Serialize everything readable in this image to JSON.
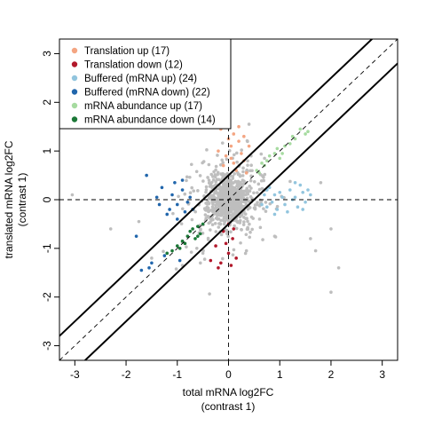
{
  "chart_data": {
    "type": "scatter",
    "xlabel": [
      "total mRNA log2FC",
      "(contrast 1)"
    ],
    "ylabel": [
      "translated mRNA log2FC",
      "(contrast 1)"
    ],
    "xlim": [
      -3.3,
      3.3
    ],
    "ylim": [
      -3.3,
      3.3
    ],
    "xticks": [
      -3,
      -2,
      -1,
      0,
      1,
      2,
      3
    ],
    "yticks": [
      -3,
      -2,
      -1,
      0,
      1,
      2,
      3
    ],
    "grid": false,
    "legend_position": "top-left",
    "reference_lines": {
      "identity": "dashed",
      "x_zero": "dashed",
      "y_zero": "dashed",
      "offset_lines_solid": [
        0.5,
        -0.5
      ]
    },
    "series": [
      {
        "name": "Translation up (17)",
        "color": "#f4a582",
        "points": [
          [
            -0.15,
            1.45
          ],
          [
            0.1,
            1.35
          ],
          [
            0.2,
            1.2
          ],
          [
            0.05,
            1.1
          ],
          [
            0.25,
            0.95
          ],
          [
            -0.05,
            0.9
          ],
          [
            0.3,
            0.8
          ],
          [
            0.1,
            0.75
          ],
          [
            -0.2,
            1.0
          ],
          [
            0.15,
            0.6
          ],
          [
            0.4,
            1.1
          ],
          [
            0.0,
            1.25
          ],
          [
            -0.1,
            0.7
          ],
          [
            0.35,
            0.55
          ],
          [
            0.2,
            1.5
          ],
          [
            0.05,
            0.85
          ],
          [
            0.3,
            1.3
          ]
        ]
      },
      {
        "name": "Translation down (12)",
        "color": "#b2182b",
        "points": [
          [
            -0.35,
            -1.25
          ],
          [
            -0.05,
            -0.9
          ],
          [
            0.0,
            -1.1
          ],
          [
            0.1,
            -0.6
          ],
          [
            -0.2,
            -1.4
          ],
          [
            0.05,
            -1.35
          ],
          [
            -0.1,
            -0.65
          ],
          [
            -0.25,
            -0.95
          ],
          [
            0.15,
            -1.2
          ],
          [
            0.0,
            -0.5
          ],
          [
            -0.15,
            -1.3
          ],
          [
            0.08,
            -0.8
          ]
        ]
      },
      {
        "name": "Buffered (mRNA up) (24)",
        "color": "#92c5de",
        "points": [
          [
            0.9,
            0.1
          ],
          [
            1.1,
            -0.1
          ],
          [
            1.3,
            0.05
          ],
          [
            0.75,
            -0.15
          ],
          [
            1.45,
            0.15
          ],
          [
            1.5,
            -0.05
          ],
          [
            1.2,
            0.2
          ],
          [
            0.95,
            -0.2
          ],
          [
            0.8,
            0.25
          ],
          [
            1.05,
            0.05
          ],
          [
            1.6,
            0.1
          ],
          [
            1.35,
            -0.15
          ],
          [
            0.7,
            0.1
          ],
          [
            1.15,
            -0.25
          ],
          [
            1.4,
            0.3
          ],
          [
            0.85,
            -0.05
          ],
          [
            1.25,
            0.0
          ],
          [
            0.65,
            -0.1
          ],
          [
            1.55,
            0.2
          ],
          [
            1.0,
            0.15
          ],
          [
            0.9,
            -0.3
          ],
          [
            1.3,
            0.35
          ],
          [
            1.45,
            -0.2
          ],
          [
            0.75,
            0.2
          ]
        ]
      },
      {
        "name": "Buffered (mRNA down) (22)",
        "color": "#2166ac",
        "points": [
          [
            -1.3,
            0.25
          ],
          [
            -1.0,
            -0.1
          ],
          [
            -0.85,
            -0.25
          ],
          [
            -0.9,
            0.2
          ],
          [
            -1.2,
            -0.3
          ],
          [
            -1.5,
            -1.3
          ],
          [
            -1.25,
            -1.15
          ],
          [
            -0.95,
            -1.25
          ],
          [
            -1.8,
            -0.75
          ],
          [
            -0.75,
            0.05
          ],
          [
            -1.1,
            0.1
          ],
          [
            -1.4,
            0.05
          ],
          [
            -1.6,
            0.5
          ],
          [
            -1.05,
            0.35
          ],
          [
            -0.8,
            -0.05
          ],
          [
            -1.15,
            -0.2
          ],
          [
            -0.7,
            -0.2
          ],
          [
            -1.35,
            -0.1
          ],
          [
            -1.55,
            -1.4
          ],
          [
            -1.7,
            -1.45
          ],
          [
            -1.0,
            -0.4
          ],
          [
            -0.9,
            0.4
          ]
        ]
      },
      {
        "name": "mRNA abundance up (17)",
        "color": "#a6dba0",
        "points": [
          [
            1.4,
            1.45
          ],
          [
            1.5,
            1.35
          ],
          [
            1.3,
            1.25
          ],
          [
            1.55,
            1.4
          ],
          [
            0.9,
            0.95
          ],
          [
            1.0,
            0.85
          ],
          [
            0.7,
            0.7
          ],
          [
            0.8,
            0.9
          ],
          [
            1.1,
            1.1
          ],
          [
            0.6,
            0.55
          ],
          [
            1.2,
            1.15
          ],
          [
            0.65,
            0.75
          ],
          [
            0.95,
            1.05
          ],
          [
            0.55,
            0.6
          ],
          [
            1.25,
            1.3
          ],
          [
            0.75,
            0.8
          ],
          [
            1.05,
            0.95
          ]
        ]
      },
      {
        "name": "mRNA abundance down (14)",
        "color": "#1b7837",
        "points": [
          [
            -0.6,
            -0.55
          ],
          [
            -0.8,
            -0.75
          ],
          [
            -0.55,
            -0.7
          ],
          [
            -0.9,
            -0.85
          ],
          [
            -1.0,
            -0.95
          ],
          [
            -0.7,
            -0.6
          ],
          [
            -0.65,
            -0.8
          ],
          [
            -1.1,
            -1.05
          ],
          [
            -0.5,
            -0.5
          ],
          [
            -0.85,
            -0.9
          ],
          [
            -0.75,
            -0.65
          ],
          [
            -1.2,
            -1.1
          ],
          [
            -0.95,
            -1.0
          ],
          [
            -0.6,
            -0.75
          ]
        ]
      },
      {
        "name": "",
        "color": "#bebebe",
        "generated_background": {
          "count": 900,
          "center": [
            0.0,
            0.0
          ],
          "core_sd": [
            0.18,
            0.22
          ],
          "spread_sd": [
            0.45,
            0.5
          ],
          "outliers": [
            [
              -3.05,
              0.1
            ],
            [
              -2.3,
              -0.6
            ],
            [
              -1.75,
              -0.45
            ],
            [
              2.0,
              -1.9
            ],
            [
              2.15,
              -1.4
            ],
            [
              1.6,
              -0.8
            ],
            [
              -0.55,
              1.85
            ],
            [
              -0.3,
              1.65
            ],
            [
              0.4,
              1.55
            ],
            [
              1.8,
              0.35
            ],
            [
              2.0,
              -0.6
            ],
            [
              -0.9,
              -1.35
            ],
            [
              0.35,
              -1.05
            ],
            [
              0.9,
              -0.75
            ],
            [
              -1.5,
              -1.2
            ],
            [
              1.7,
              -1.05
            ]
          ]
        }
      }
    ]
  }
}
